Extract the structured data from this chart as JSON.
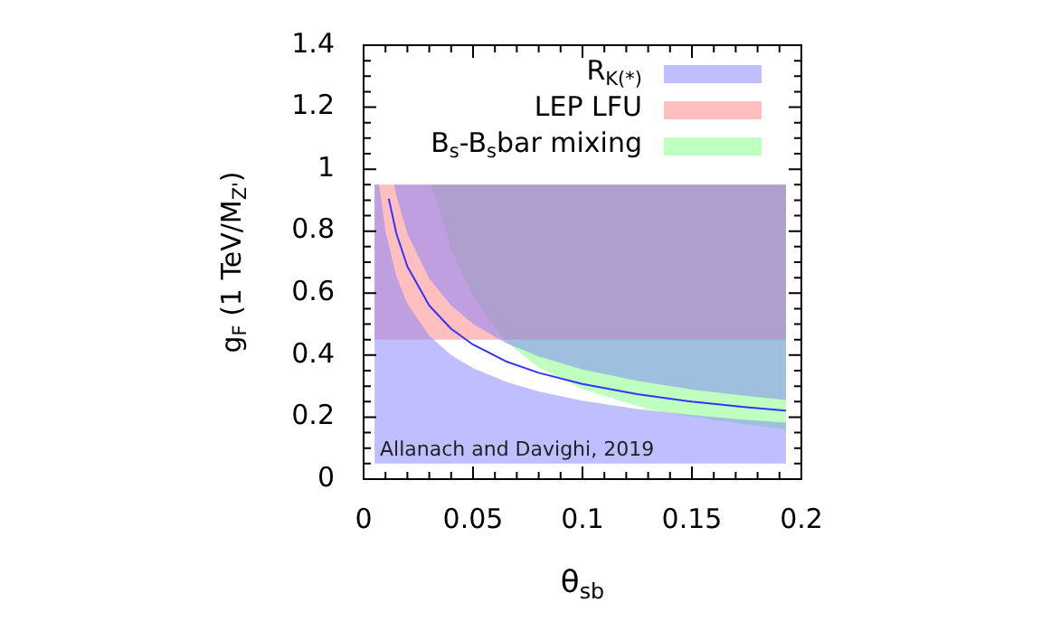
{
  "chart_data": {
    "type": "area",
    "xlabel": "θ$_{sb}$",
    "ylabel": "g$_{F}$ (1 TeV/M$_{Z'}$)",
    "xlim": [
      0,
      0.2
    ],
    "xticks": [
      0,
      0.05,
      0.1,
      0.15,
      0.2
    ],
    "ylim": [
      0,
      1.4
    ],
    "yticks": [
      0,
      0.2,
      0.4,
      0.6,
      0.8,
      1,
      1.2,
      1.4
    ],
    "legend": "top right",
    "annotations": [
      "Allanach and Davighi, 2019"
    ],
    "series": [
      {
        "name": "R$_{K(*)}$",
        "color": "#8080ff",
        "x": [
          0.005,
          0.0071,
          0.01,
          0.015,
          0.02,
          0.03,
          0.04,
          0.05,
          0.065,
          0.08,
          0.1,
          0.125,
          0.15,
          0.175,
          0.193
        ],
        "values": [
          null,
          null,
          null,
          null,
          null,
          null,
          null,
          null,
          null,
          null,
          null,
          null,
          null,
          null,
          null
        ],
        "upper": [
          0.95,
          0.95,
          0.8,
          0.653,
          0.566,
          0.462,
          0.4,
          0.358,
          0.314,
          0.283,
          0.253,
          0.226,
          0.207,
          0.191,
          0.182
        ],
        "lower": [
          0.05,
          0.05,
          0.05,
          0.05,
          0.05,
          0.05,
          0.05,
          0.05,
          0.05,
          0.05,
          0.05,
          0.05,
          0.05,
          0.05,
          0.05
        ]
      },
      {
        "color": "#8080ff",
        "x": [
          0.0139,
          0.015,
          0.02,
          0.03,
          0.04,
          0.05,
          0.065,
          0.08,
          0.1,
          0.125,
          0.15,
          0.175,
          0.193
        ],
        "values": [
          null,
          null,
          null,
          null,
          null,
          null,
          null,
          null,
          null,
          null,
          null,
          null,
          null
        ],
        "upper": [
          0.95,
          0.95,
          0.95,
          0.95,
          0.95,
          0.95,
          0.95,
          0.95,
          0.95,
          0.95,
          0.95,
          0.95,
          0.95
        ],
        "lower": [
          0.95,
          0.914,
          0.792,
          0.647,
          0.56,
          0.501,
          0.439,
          0.396,
          0.354,
          0.317,
          0.289,
          0.268,
          0.255
        ]
      },
      {
        "name": "LEP LFU",
        "color": "#ff8080",
        "x": [
          0.005,
          0.193
        ],
        "values": [
          null,
          null
        ],
        "upper": [
          0.95,
          0.95
        ],
        "lower": [
          0.45,
          0.45
        ]
      },
      {
        "name": "B$_{s}$-B$_{s}$bar mixing",
        "color": "#80ff80",
        "x": [
          0.031,
          0.04,
          0.05,
          0.064,
          0.08,
          0.1,
          0.13,
          0.16,
          0.193
        ],
        "values": [
          null,
          null,
          null,
          null,
          null,
          null,
          null,
          null,
          null
        ],
        "upper": [
          0.95,
          0.95,
          0.95,
          0.95,
          0.95,
          0.95,
          0.95,
          0.95,
          0.95
        ],
        "lower": [
          0.95,
          0.74,
          0.59,
          0.45,
          0.36,
          0.29,
          0.225,
          0.19,
          0.16
        ]
      },
      {
        "type": "line",
        "color": "#3333ff",
        "x": [
          0.0115,
          0.015,
          0.02,
          0.03,
          0.04,
          0.05,
          0.065,
          0.08,
          0.1,
          0.125,
          0.15,
          0.175,
          0.193
        ],
        "values": [
          0.905,
          0.792,
          0.686,
          0.56,
          0.485,
          0.434,
          0.38,
          0.343,
          0.307,
          0.274,
          0.25,
          0.232,
          0.221
        ]
      }
    ]
  }
}
